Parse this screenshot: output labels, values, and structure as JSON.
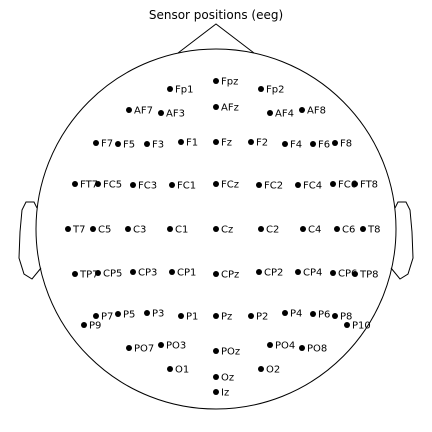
{
  "title": "Sensor positions (eeg)",
  "colors": {
    "background": "#ffffff",
    "outline": "#000000",
    "sensor": "#000000",
    "text": "#000000"
  },
  "sensors": [
    {
      "name": "Fp1"
    },
    {
      "name": "Fpz"
    },
    {
      "name": "Fp2"
    },
    {
      "name": "AF7"
    },
    {
      "name": "AF3"
    },
    {
      "name": "AFz"
    },
    {
      "name": "AF4"
    },
    {
      "name": "AF8"
    },
    {
      "name": "F7"
    },
    {
      "name": "F5"
    },
    {
      "name": "F3"
    },
    {
      "name": "F1"
    },
    {
      "name": "Fz"
    },
    {
      "name": "F2"
    },
    {
      "name": "F4"
    },
    {
      "name": "F6"
    },
    {
      "name": "F8"
    },
    {
      "name": "FT7"
    },
    {
      "name": "FC5"
    },
    {
      "name": "FC3"
    },
    {
      "name": "FC1"
    },
    {
      "name": "FCz"
    },
    {
      "name": "FC2"
    },
    {
      "name": "FC4"
    },
    {
      "name": "FC6"
    },
    {
      "name": "FT8"
    },
    {
      "name": "T7"
    },
    {
      "name": "C5"
    },
    {
      "name": "C3"
    },
    {
      "name": "C1"
    },
    {
      "name": "Cz"
    },
    {
      "name": "C2"
    },
    {
      "name": "C4"
    },
    {
      "name": "C6"
    },
    {
      "name": "T8"
    },
    {
      "name": "TP7"
    },
    {
      "name": "CP5"
    },
    {
      "name": "CP3"
    },
    {
      "name": "CP1"
    },
    {
      "name": "CPz"
    },
    {
      "name": "CP2"
    },
    {
      "name": "CP4"
    },
    {
      "name": "CP6"
    },
    {
      "name": "TP8"
    },
    {
      "name": "P7"
    },
    {
      "name": "P5"
    },
    {
      "name": "P3"
    },
    {
      "name": "P1"
    },
    {
      "name": "Pz"
    },
    {
      "name": "P2"
    },
    {
      "name": "P4"
    },
    {
      "name": "P6"
    },
    {
      "name": "P8"
    },
    {
      "name": "P9"
    },
    {
      "name": "P10"
    },
    {
      "name": "PO7"
    },
    {
      "name": "PO3"
    },
    {
      "name": "POz"
    },
    {
      "name": "PO4"
    },
    {
      "name": "PO8"
    },
    {
      "name": "O1"
    },
    {
      "name": "Oz"
    },
    {
      "name": "O2"
    },
    {
      "name": "Iz"
    }
  ]
}
